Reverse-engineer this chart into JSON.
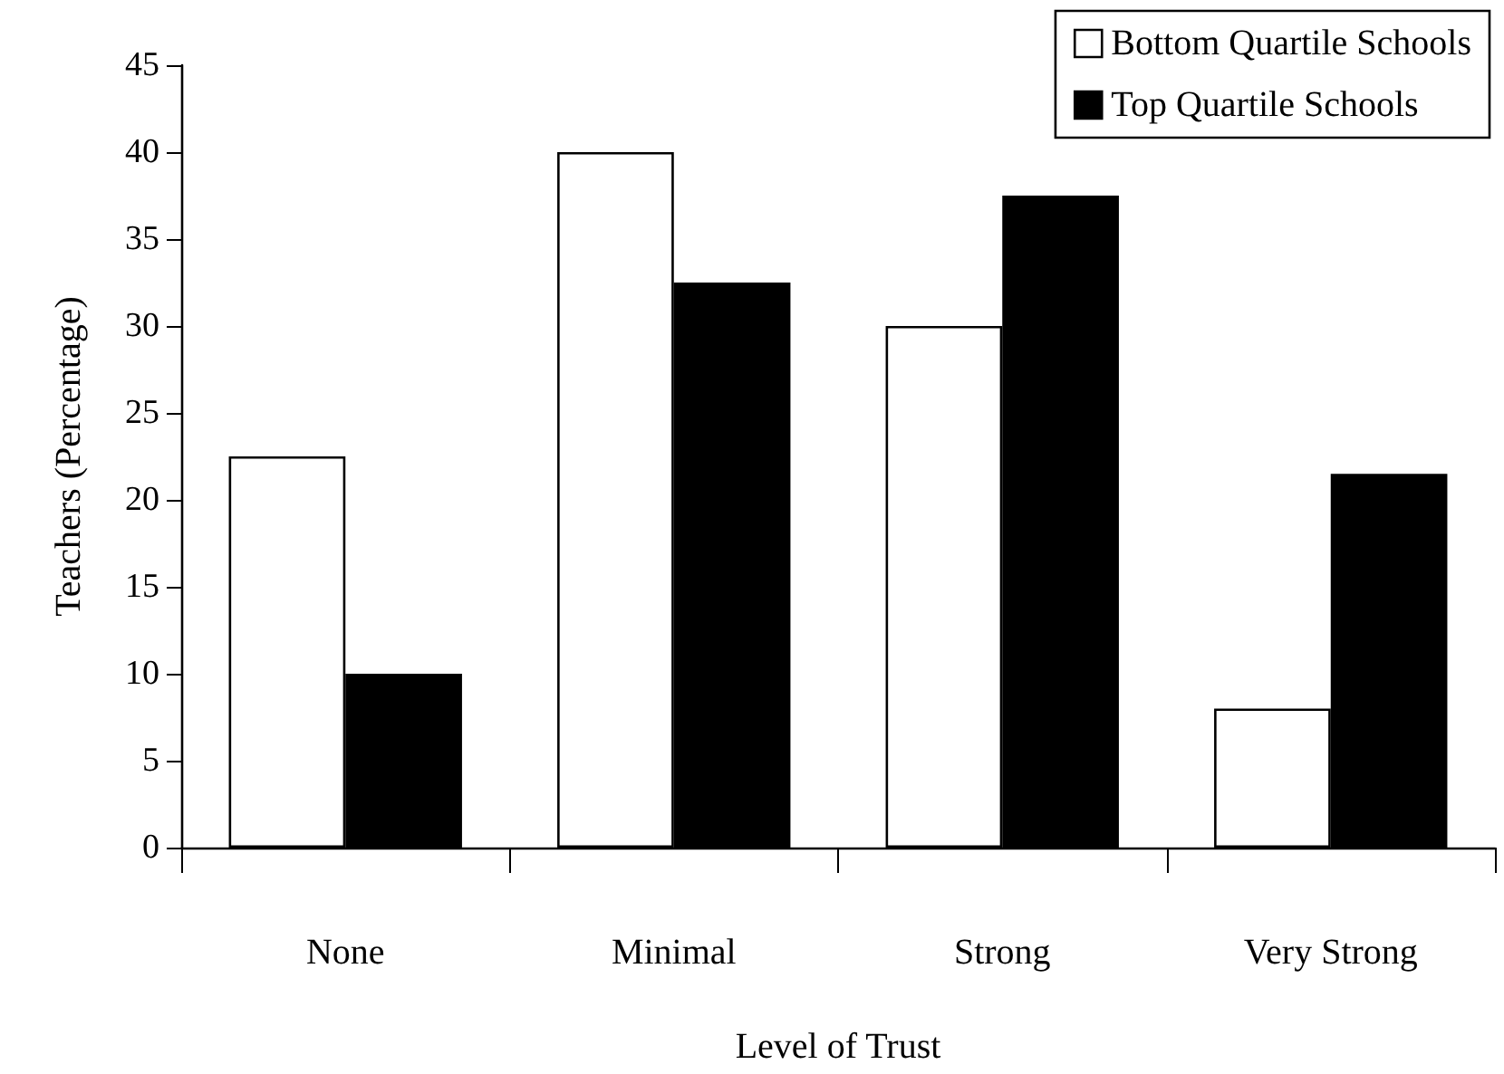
{
  "chart_data": {
    "type": "bar",
    "xlabel": "Level of Trust",
    "ylabel": "Teachers (Percentage)",
    "categories": [
      "None",
      "Minimal",
      "Strong",
      "Very Strong"
    ],
    "series": [
      {
        "name": "Bottom Quartile Schools",
        "color": "#ffffff",
        "values": [
          22.5,
          40,
          30,
          8
        ]
      },
      {
        "name": "Top Quartile Schools",
        "color": "#000000",
        "values": [
          10,
          32.5,
          37.5,
          21.5
        ]
      }
    ],
    "ylim": [
      0,
      45
    ],
    "yticks": [
      0,
      5,
      10,
      15,
      20,
      25,
      30,
      35,
      40,
      45
    ],
    "grid": false,
    "legend": "top right"
  }
}
